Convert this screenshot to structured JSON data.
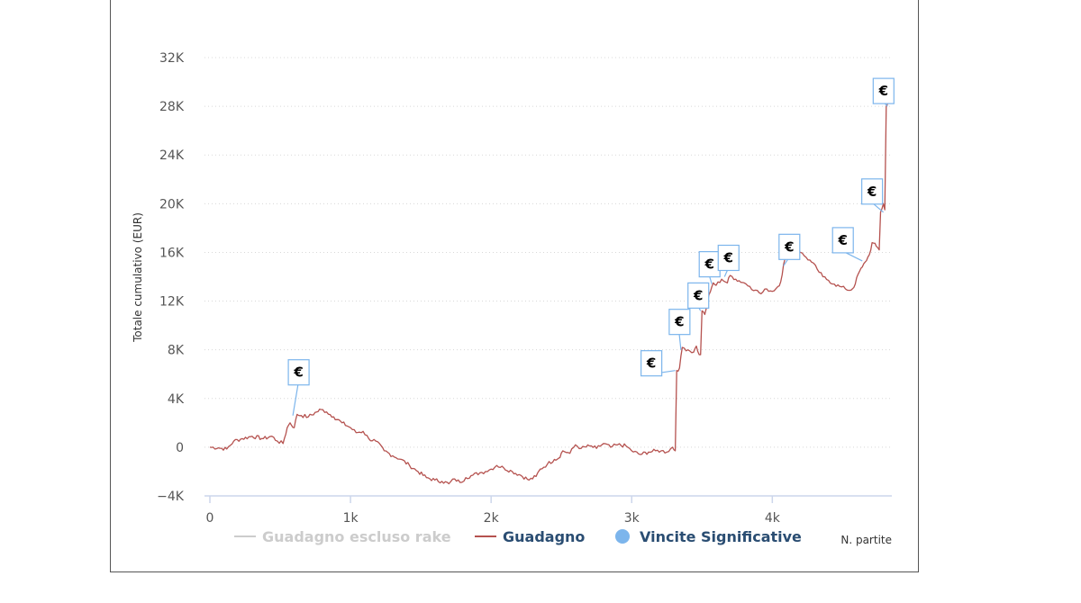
{
  "chart_data": {
    "type": "line",
    "ylabel": "Totale cumulativo (EUR)",
    "xlabel": "N. partite",
    "xlim": [
      0,
      4850
    ],
    "ylim": [
      -4000,
      32000
    ],
    "x_ticks": [
      0,
      1000,
      2000,
      3000,
      4000
    ],
    "x_tick_labels": [
      "0",
      "1k",
      "2k",
      "3k",
      "4k"
    ],
    "y_ticks": [
      -4000,
      0,
      4000,
      8000,
      12000,
      16000,
      20000,
      24000,
      28000,
      32000
    ],
    "y_tick_labels": [
      "−4K",
      "0",
      "4K",
      "8K",
      "12K",
      "16K",
      "20K",
      "24K",
      "28K",
      "32K"
    ],
    "grid": "horizontal dotted",
    "legend_position": "bottom",
    "series": [
      {
        "name": "Guadagno escluso rake",
        "color": "#cccccc",
        "hidden": true,
        "points": []
      },
      {
        "name": "Guadagno",
        "color": "#b5524f",
        "points": [
          [
            0,
            0
          ],
          [
            60,
            -50
          ],
          [
            120,
            -150
          ],
          [
            170,
            500
          ],
          [
            230,
            700
          ],
          [
            300,
            900
          ],
          [
            380,
            700
          ],
          [
            440,
            900
          ],
          [
            480,
            500
          ],
          [
            520,
            300
          ],
          [
            550,
            1600
          ],
          [
            570,
            2000
          ],
          [
            600,
            1600
          ],
          [
            620,
            2700
          ],
          [
            650,
            2600
          ],
          [
            700,
            2500
          ],
          [
            760,
            2900
          ],
          [
            790,
            3100
          ],
          [
            830,
            2900
          ],
          [
            880,
            2500
          ],
          [
            940,
            2000
          ],
          [
            1000,
            1600
          ],
          [
            1040,
            1200
          ],
          [
            1090,
            1300
          ],
          [
            1130,
            700
          ],
          [
            1180,
            500
          ],
          [
            1240,
            -300
          ],
          [
            1300,
            -700
          ],
          [
            1360,
            -1000
          ],
          [
            1420,
            -1500
          ],
          [
            1480,
            -2000
          ],
          [
            1540,
            -2500
          ],
          [
            1600,
            -2700
          ],
          [
            1650,
            -2800
          ],
          [
            1700,
            -3000
          ],
          [
            1740,
            -2600
          ],
          [
            1780,
            -2900
          ],
          [
            1820,
            -2500
          ],
          [
            1870,
            -2300
          ],
          [
            1920,
            -2100
          ],
          [
            1960,
            -2000
          ],
          [
            2000,
            -1800
          ],
          [
            2040,
            -1500
          ],
          [
            2090,
            -1700
          ],
          [
            2150,
            -2000
          ],
          [
            2210,
            -2300
          ],
          [
            2270,
            -2700
          ],
          [
            2320,
            -2400
          ],
          [
            2350,
            -1800
          ],
          [
            2400,
            -1400
          ],
          [
            2450,
            -1000
          ],
          [
            2480,
            -900
          ],
          [
            2510,
            -300
          ],
          [
            2560,
            -500
          ],
          [
            2600,
            200
          ],
          [
            2640,
            -100
          ],
          [
            2700,
            100
          ],
          [
            2750,
            -100
          ],
          [
            2800,
            300
          ],
          [
            2850,
            0
          ],
          [
            2900,
            200
          ],
          [
            2960,
            100
          ],
          [
            3000,
            -300
          ],
          [
            3060,
            -600
          ],
          [
            3120,
            -400
          ],
          [
            3170,
            -300
          ],
          [
            3210,
            -300
          ],
          [
            3250,
            -400
          ],
          [
            3290,
            0
          ],
          [
            3310,
            -300
          ],
          [
            3320,
            6300
          ],
          [
            3340,
            6500
          ],
          [
            3360,
            8200
          ],
          [
            3400,
            8000
          ],
          [
            3440,
            7800
          ],
          [
            3460,
            8300
          ],
          [
            3480,
            7600
          ],
          [
            3500,
            11200
          ],
          [
            3520,
            10900
          ],
          [
            3540,
            12000
          ],
          [
            3560,
            12800
          ],
          [
            3580,
            13500
          ],
          [
            3600,
            13300
          ],
          [
            3640,
            13800
          ],
          [
            3680,
            13500
          ],
          [
            3700,
            14100
          ],
          [
            3740,
            13800
          ],
          [
            3800,
            13500
          ],
          [
            3840,
            13200
          ],
          [
            3880,
            12900
          ],
          [
            3920,
            12600
          ],
          [
            3960,
            13000
          ],
          [
            4000,
            12800
          ],
          [
            4040,
            13200
          ],
          [
            4060,
            13600
          ],
          [
            4080,
            15000
          ],
          [
            4100,
            15800
          ],
          [
            4130,
            16300
          ],
          [
            4170,
            16500
          ],
          [
            4200,
            16000
          ],
          [
            4240,
            15600
          ],
          [
            4280,
            15200
          ],
          [
            4320,
            14600
          ],
          [
            4360,
            14000
          ],
          [
            4400,
            13700
          ],
          [
            4440,
            13400
          ],
          [
            4480,
            13200
          ],
          [
            4520,
            13000
          ],
          [
            4560,
            12900
          ],
          [
            4590,
            13400
          ],
          [
            4610,
            14200
          ],
          [
            4640,
            14800
          ],
          [
            4660,
            15200
          ],
          [
            4690,
            15800
          ],
          [
            4710,
            16800
          ],
          [
            4740,
            16500
          ],
          [
            4760,
            16200
          ],
          [
            4770,
            19300
          ],
          [
            4790,
            20000
          ],
          [
            4800,
            19500
          ],
          [
            4810,
            28000
          ],
          [
            4820,
            28200
          ]
        ]
      },
      {
        "name": "Vincite Significative",
        "color": "#7cb5ec",
        "marker": "€",
        "points": [
          [
            590,
            2600
          ],
          [
            3310,
            6300
          ],
          [
            3350,
            8000
          ],
          [
            3490,
            11200
          ],
          [
            3570,
            13400
          ],
          [
            3660,
            14000
          ],
          [
            4080,
            14900
          ],
          [
            4640,
            15300
          ],
          [
            4790,
            19300
          ],
          [
            4820,
            28000
          ]
        ],
        "flag_offsets": [
          [
            -5,
            -62
          ],
          [
            -38,
            -22
          ],
          [
            -13,
            -45
          ],
          [
            -14,
            -31
          ],
          [
            -14,
            -36
          ],
          [
            -7,
            -35
          ],
          [
            -5,
            -35
          ],
          [
            -33,
            -37
          ],
          [
            -24,
            -37
          ],
          [
            -16,
            -31
          ]
        ]
      }
    ]
  }
}
